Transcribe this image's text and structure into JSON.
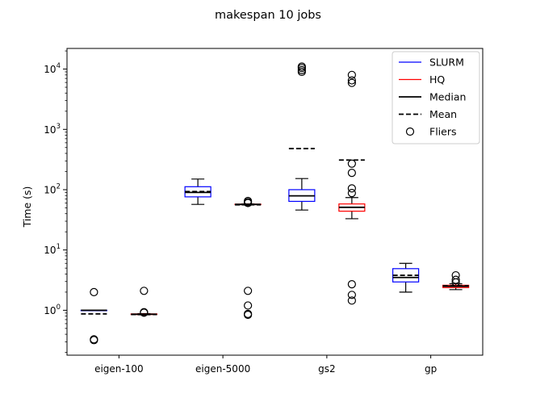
{
  "chart_data": {
    "type": "box",
    "title": "makespan 10 jobs",
    "xlabel": "",
    "ylabel": "Time (s)",
    "yscale": "log",
    "ylim": [
      0.18,
      22000
    ],
    "yticks": [
      {
        "value": 1,
        "mant": "10",
        "exp": "0"
      },
      {
        "value": 10,
        "mant": "10",
        "exp": "1"
      },
      {
        "value": 100,
        "mant": "10",
        "exp": "2"
      },
      {
        "value": 1000,
        "mant": "10",
        "exp": "3"
      },
      {
        "value": 10000,
        "mant": "10",
        "exp": "4"
      }
    ],
    "categories": [
      "eigen-100",
      "eigen-5000",
      "gs2",
      "gp"
    ],
    "colors": {
      "SLURM": "#0000ff",
      "HQ": "#ff0000",
      "median": "#000000",
      "mean": "#000000"
    },
    "series": [
      {
        "name": "SLURM",
        "boxes": [
          {
            "whislo": 1.0,
            "q1": 1.0,
            "med": 1.0,
            "q3": 1.0,
            "whishi": 1.0,
            "mean": 0.87,
            "fliers": [
              2.0,
              0.33,
              0.32
            ]
          },
          {
            "whislo": 57,
            "q1": 76,
            "med": 90,
            "q3": 112,
            "whishi": 150,
            "mean": 93,
            "fliers": []
          },
          {
            "whislo": 46,
            "q1": 64,
            "med": 79,
            "q3": 100,
            "whishi": 153,
            "mean": 480,
            "fliers": [
              11000,
              10400,
              9600,
              9000
            ]
          },
          {
            "whislo": 2.0,
            "q1": 2.95,
            "med": 3.5,
            "q3": 4.9,
            "whishi": 6.0,
            "mean": 3.8,
            "fliers": []
          }
        ]
      },
      {
        "name": "HQ",
        "boxes": [
          {
            "whislo": 0.84,
            "q1": 0.85,
            "med": 0.86,
            "q3": 0.87,
            "whishi": 0.88,
            "mean": 0.85,
            "fliers": [
              2.1,
              0.93,
              0.91
            ]
          },
          {
            "whislo": 56,
            "q1": 56.5,
            "med": 57,
            "q3": 57.5,
            "whishi": 58,
            "mean": 56,
            "fliers": [
              65,
              62,
              60,
              2.1,
              1.2,
              0.87,
              0.84
            ]
          },
          {
            "whislo": 33,
            "q1": 44,
            "med": 51,
            "q3": 58,
            "whishi": 74,
            "mean": 310,
            "fliers": [
              8000,
              6500,
              5900,
              270,
              190,
              105,
              88,
              2.7,
              1.8,
              1.45
            ]
          },
          {
            "whislo": 2.2,
            "q1": 2.38,
            "med": 2.5,
            "q3": 2.6,
            "whishi": 2.75,
            "mean": 2.55,
            "fliers": [
              3.8,
              3.2,
              2.9
            ]
          }
        ]
      }
    ],
    "legend": {
      "position": "top-right",
      "items": [
        {
          "label": "SLURM",
          "kind": "line",
          "color": "#0000ff"
        },
        {
          "label": "HQ",
          "kind": "line",
          "color": "#ff0000"
        },
        {
          "label": "Median",
          "kind": "line",
          "color": "#000000"
        },
        {
          "label": "Mean",
          "kind": "dash",
          "color": "#000000"
        },
        {
          "label": "Fliers",
          "kind": "marker",
          "color": "#000000"
        }
      ]
    }
  }
}
